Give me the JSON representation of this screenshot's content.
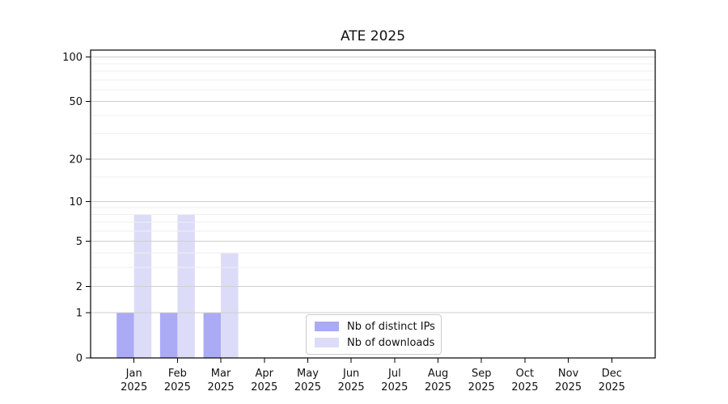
{
  "chart_data": {
    "type": "bar",
    "title": "ATE 2025",
    "categories": [
      "Jan",
      "Feb",
      "Mar",
      "Apr",
      "May",
      "Jun",
      "Jul",
      "Aug",
      "Sep",
      "Oct",
      "Nov",
      "Dec"
    ],
    "x_axis": {
      "year_label": "2025"
    },
    "series": [
      {
        "name": "Nb of distinct IPs",
        "color": "#aaaaf5",
        "values": [
          1,
          1,
          1,
          0,
          0,
          0,
          0,
          0,
          0,
          0,
          0,
          0
        ]
      },
      {
        "name": "Nb of downloads",
        "color": "#dcdcf8",
        "values": [
          8,
          8,
          4,
          0,
          0,
          0,
          0,
          0,
          0,
          0,
          0,
          0
        ]
      }
    ],
    "y_axis": {
      "scale": "log1p",
      "ticks": [
        0,
        1,
        2,
        5,
        10,
        20,
        50,
        100
      ],
      "minor_ticks": [
        3,
        4,
        6,
        7,
        8,
        9,
        15,
        30,
        40,
        60,
        70,
        80,
        90
      ],
      "ylim": [
        0,
        111
      ]
    },
    "legend": {
      "position": "inside-bottom-center"
    },
    "grid": "on",
    "colors": {
      "grid_major": "#cfcfcf",
      "grid_minor": "#efefef",
      "axis": "#000000",
      "text": "#111111",
      "background": "#ffffff"
    }
  }
}
